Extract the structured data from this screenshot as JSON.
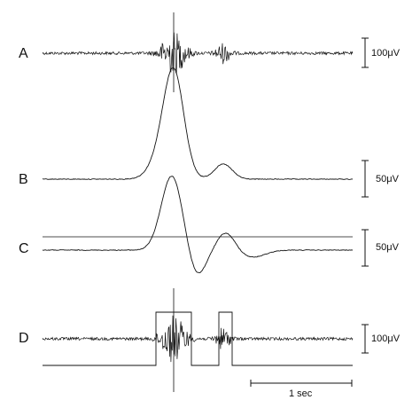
{
  "traces": [
    {
      "label": "A",
      "scale_value": "100",
      "scale_unit": "μV"
    },
    {
      "label": "B",
      "scale_value": "50",
      "scale_unit": "μV"
    },
    {
      "label": "C",
      "scale_value": "50",
      "scale_unit": "μV"
    },
    {
      "label": "D",
      "scale_value": "100",
      "scale_unit": "μV"
    }
  ],
  "time_scale": {
    "label": "1 sec"
  }
}
